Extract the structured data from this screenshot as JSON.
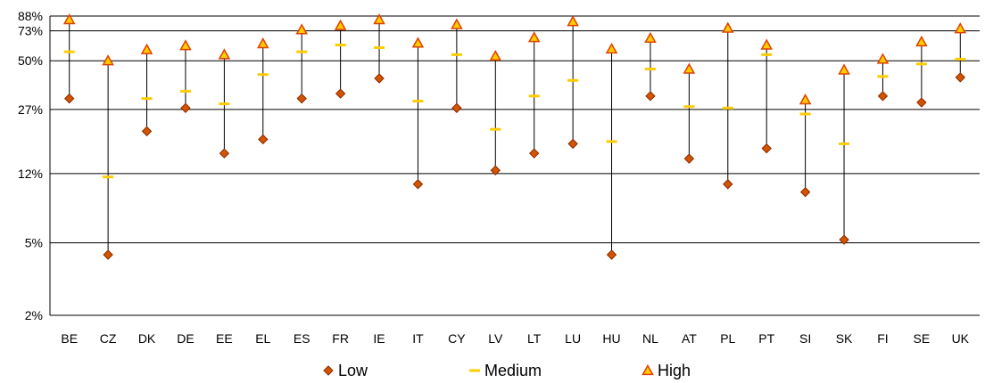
{
  "chart_data": {
    "type": "scatter",
    "title": "",
    "xlabel": "",
    "ylabel": "",
    "y_scale": "log",
    "ylim": [
      2,
      88
    ],
    "y_ticks": [
      {
        "value": 2,
        "label": "2%"
      },
      {
        "value": 5,
        "label": "5%"
      },
      {
        "value": 12,
        "label": "12%"
      },
      {
        "value": 27,
        "label": "27%"
      },
      {
        "value": 50,
        "label": "50%"
      },
      {
        "value": 73,
        "label": "73%"
      },
      {
        "value": 88,
        "label": "88%"
      }
    ],
    "grid": true,
    "legend_position": "bottom",
    "categories": [
      "BE",
      "CZ",
      "DK",
      "DE",
      "EE",
      "EL",
      "ES",
      "FR",
      "IE",
      "IT",
      "CY",
      "LV",
      "LT",
      "LU",
      "HU",
      "NL",
      "AT",
      "PL",
      "PT",
      "SI",
      "SK",
      "FI",
      "SE",
      "UK"
    ],
    "series": [
      {
        "name": "Low",
        "marker": "diamond",
        "color": "#d35400",
        "stroke": "#8b2a00",
        "values": [
          31,
          4.3,
          20.5,
          27.5,
          15.5,
          18.5,
          31,
          33,
          40,
          10.5,
          27.5,
          12.5,
          15.5,
          17.5,
          4.3,
          32,
          14.5,
          10.5,
          16.5,
          9.5,
          5.2,
          32,
          29.5,
          40.5
        ]
      },
      {
        "name": "Medium",
        "marker": "dash",
        "color": "#ffcc00",
        "values": [
          56,
          11.5,
          31,
          34,
          29,
          42,
          56,
          61,
          59,
          30,
          54,
          21,
          32,
          39,
          18,
          45,
          28,
          27.5,
          54,
          25.5,
          17.5,
          41,
          48,
          51
        ]
      },
      {
        "name": "High",
        "marker": "triangle",
        "color": "#ffcc00",
        "stroke": "#e04000",
        "values": [
          84,
          50,
          57.5,
          60.5,
          54,
          62,
          74,
          78,
          84,
          62.5,
          79,
          53,
          67,
          82,
          58,
          66.5,
          45,
          75.5,
          61,
          30.5,
          44.5,
          51,
          63.5,
          75
        ]
      }
    ]
  }
}
